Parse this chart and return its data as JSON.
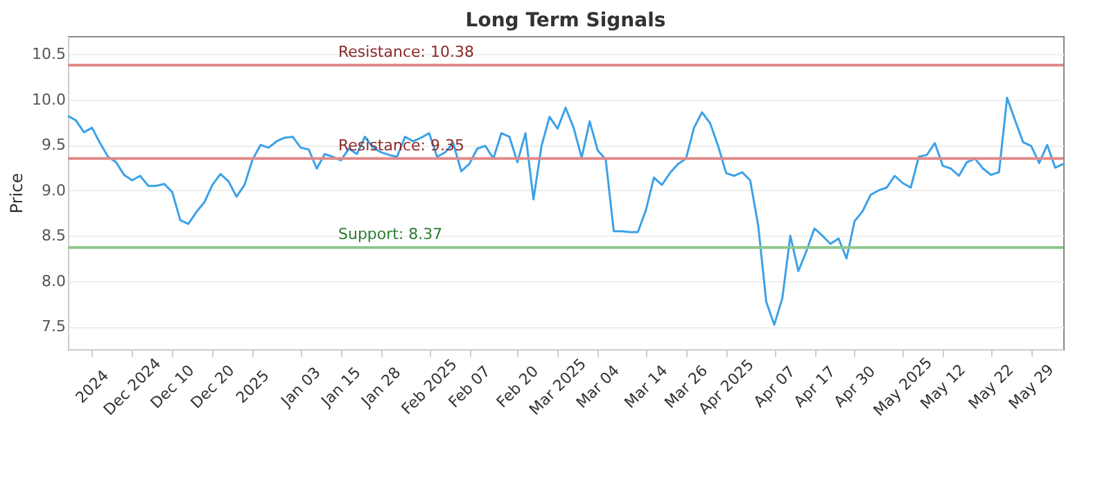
{
  "chart_data": {
    "type": "line",
    "title": "Long Term Signals",
    "ylabel": "Price",
    "categories": [
      null,
      null,
      null,
      "2024",
      null,
      null,
      null,
      null,
      "Dec 2024",
      null,
      null,
      null,
      null,
      "Dec 10",
      null,
      null,
      null,
      null,
      "Dec 20",
      null,
      null,
      null,
      null,
      "2025",
      null,
      null,
      null,
      null,
      null,
      "Jan 03",
      null,
      null,
      null,
      null,
      "Jan 15",
      null,
      null,
      null,
      null,
      "Jan 28",
      null,
      null,
      null,
      null,
      null,
      "Feb 2025",
      null,
      null,
      null,
      null,
      "Feb 07",
      null,
      null,
      null,
      null,
      null,
      "Feb 20",
      null,
      null,
      null,
      null,
      "Mar 2025",
      null,
      null,
      null,
      null,
      "Mar 04",
      null,
      null,
      null,
      null,
      null,
      "Mar 14",
      null,
      null,
      null,
      null,
      "Mar 26",
      null,
      null,
      null,
      null,
      "Apr 2025",
      null,
      null,
      null,
      null,
      null,
      "Apr 07",
      null,
      null,
      null,
      null,
      "Apr 17",
      null,
      null,
      null,
      null,
      "Apr 30",
      null,
      null,
      null,
      null,
      null,
      "May 2025",
      null,
      null,
      null,
      null,
      "May 12",
      null,
      null,
      null,
      null,
      null,
      "May 22",
      null,
      null,
      null,
      null,
      "May 29",
      null,
      null,
      null,
      null
    ],
    "series": [
      {
        "color": "#3ba1e8",
        "values": [
          9.82,
          9.77,
          9.64,
          9.69,
          9.52,
          9.37,
          9.31,
          9.17,
          9.11,
          9.16,
          9.05,
          9.05,
          9.07,
          8.98,
          8.67,
          8.63,
          8.76,
          8.87,
          9.06,
          9.18,
          9.1,
          8.93,
          9.06,
          9.34,
          9.5,
          9.47,
          9.54,
          9.58,
          9.59,
          9.47,
          9.45,
          9.24,
          9.4,
          9.37,
          9.33,
          9.46,
          9.4,
          9.59,
          9.47,
          9.42,
          9.39,
          9.37,
          9.59,
          9.54,
          9.58,
          9.63,
          9.37,
          9.42,
          9.52,
          9.21,
          9.29,
          9.46,
          9.49,
          9.35,
          9.63,
          9.59,
          9.31,
          9.63,
          8.9,
          9.49,
          9.81,
          9.68,
          9.91,
          9.69,
          9.36,
          9.76,
          9.44,
          9.34,
          8.55,
          8.55,
          8.54,
          8.54,
          8.78,
          9.14,
          9.06,
          9.19,
          9.29,
          9.35,
          9.69,
          9.86,
          9.74,
          9.49,
          9.19,
          9.16,
          9.2,
          9.11,
          8.61,
          7.77,
          7.52,
          7.81,
          8.5,
          8.11,
          8.33,
          8.58,
          8.5,
          8.41,
          8.47,
          8.25,
          8.66,
          8.77,
          8.95,
          9.0,
          9.03,
          9.16,
          9.08,
          9.03,
          9.37,
          9.39,
          9.52,
          9.27,
          9.24,
          9.16,
          9.31,
          9.35,
          9.24,
          9.17,
          9.2,
          10.02,
          9.77,
          9.53,
          9.49,
          9.3,
          9.5,
          9.25,
          9.29
        ]
      }
    ],
    "ylim": [
      7.25,
      10.7
    ],
    "yticks": [
      7.5,
      {
        "value": 8,
        "label": "8.0"
      },
      8.5,
      {
        "value": 9,
        "label": "9.0"
      },
      9.5,
      {
        "value": 10,
        "label": "10.0"
      },
      10.5
    ],
    "grid": "y",
    "marker": "none",
    "line_style": "solid",
    "ref_lines": [
      {
        "axis": "y",
        "value": 10.38,
        "label": "Resistance: 10.38",
        "color": "#e08a8a"
      },
      {
        "axis": "y",
        "value": 9.35,
        "label": "Resistance: 9.35",
        "color": "#e08a8a"
      },
      {
        "axis": "y",
        "value": 8.37,
        "label": "Support: 8.37",
        "color": "#8cc78c"
      }
    ]
  }
}
